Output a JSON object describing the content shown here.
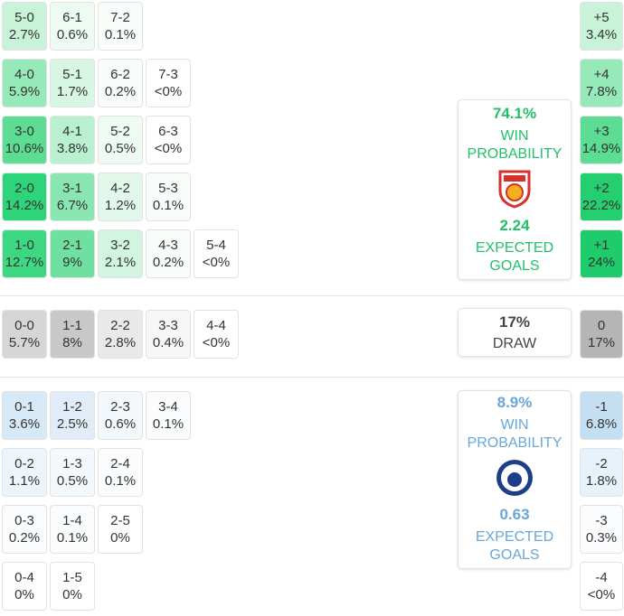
{
  "home_grid": {
    "rows": [
      [
        {
          "score": "5-0",
          "pct": "2.7%",
          "color": "#c8f3d9"
        },
        {
          "score": "6-1",
          "pct": "0.6%",
          "color": "#eefbf3"
        },
        {
          "score": "7-2",
          "pct": "0.1%",
          "color": "#f8fdfa"
        }
      ],
      [
        {
          "score": "4-0",
          "pct": "5.9%",
          "color": "#96e9b8"
        },
        {
          "score": "5-1",
          "pct": "1.7%",
          "color": "#d8f6e4"
        },
        {
          "score": "6-2",
          "pct": "0.2%",
          "color": "#f8fdfa"
        },
        {
          "score": "7-3",
          "pct": "<0%",
          "color": "#ffffff"
        }
      ],
      [
        {
          "score": "3-0",
          "pct": "10.6%",
          "color": "#5ddc93"
        },
        {
          "score": "4-1",
          "pct": "3.8%",
          "color": "#b9f0cf"
        },
        {
          "score": "5-2",
          "pct": "0.5%",
          "color": "#eefbf3"
        },
        {
          "score": "6-3",
          "pct": "<0%",
          "color": "#ffffff"
        }
      ],
      [
        {
          "score": "2-0",
          "pct": "14.2%",
          "color": "#2ed47a"
        },
        {
          "score": "3-1",
          "pct": "6.7%",
          "color": "#8ae6b1"
        },
        {
          "score": "4-2",
          "pct": "1.2%",
          "color": "#e2f8eb"
        },
        {
          "score": "5-3",
          "pct": "0.1%",
          "color": "#f8fdfa"
        }
      ],
      [
        {
          "score": "1-0",
          "pct": "12.7%",
          "color": "#3dd882"
        },
        {
          "score": "2-1",
          "pct": "9%",
          "color": "#6fe0a0"
        },
        {
          "score": "3-2",
          "pct": "2.1%",
          "color": "#d1f5e0"
        },
        {
          "score": "4-3",
          "pct": "0.2%",
          "color": "#f8fdfa"
        },
        {
          "score": "5-4",
          "pct": "<0%",
          "color": "#ffffff"
        }
      ]
    ]
  },
  "draw_row": [
    {
      "score": "0-0",
      "pct": "5.7%",
      "color": "#d6d6d6"
    },
    {
      "score": "1-1",
      "pct": "8%",
      "color": "#c8c8c8"
    },
    {
      "score": "2-2",
      "pct": "2.8%",
      "color": "#e9e9e9"
    },
    {
      "score": "3-3",
      "pct": "0.4%",
      "color": "#f7f7f7"
    },
    {
      "score": "4-4",
      "pct": "<0%",
      "color": "#ffffff"
    }
  ],
  "away_grid": {
    "rows": [
      [
        {
          "score": "0-1",
          "pct": "3.6%",
          "color": "#d7e8f6"
        },
        {
          "score": "1-2",
          "pct": "2.5%",
          "color": "#e0edf8"
        },
        {
          "score": "2-3",
          "pct": "0.6%",
          "color": "#f3f8fc"
        },
        {
          "score": "3-4",
          "pct": "0.1%",
          "color": "#fafcfe"
        }
      ],
      [
        {
          "score": "0-2",
          "pct": "1.1%",
          "color": "#edf5fb"
        },
        {
          "score": "1-3",
          "pct": "0.5%",
          "color": "#f3f8fc"
        },
        {
          "score": "2-4",
          "pct": "0.1%",
          "color": "#fafcfe"
        }
      ],
      [
        {
          "score": "0-3",
          "pct": "0.2%",
          "color": "#fafcfe"
        },
        {
          "score": "1-4",
          "pct": "0.1%",
          "color": "#fafcfe"
        },
        {
          "score": "2-5",
          "pct": "0%",
          "color": "#ffffff"
        }
      ],
      [
        {
          "score": "0-4",
          "pct": "0%",
          "color": "#ffffff"
        },
        {
          "score": "1-5",
          "pct": "0%",
          "color": "#ffffff"
        }
      ]
    ]
  },
  "margins": {
    "home": [
      {
        "score": "+5",
        "pct": "3.4%",
        "color": "#c8f3d9"
      },
      {
        "score": "+4",
        "pct": "7.8%",
        "color": "#96e9b8"
      },
      {
        "score": "+3",
        "pct": "14.9%",
        "color": "#5ddc93"
      },
      {
        "score": "+2",
        "pct": "22.2%",
        "color": "#25cf70"
      },
      {
        "score": "+1",
        "pct": "24%",
        "color": "#1ecc6b"
      }
    ],
    "draw": [
      {
        "score": "0",
        "pct": "17%",
        "color": "#b5b5b5"
      }
    ],
    "away": [
      {
        "score": "-1",
        "pct": "6.8%",
        "color": "#c5dff2"
      },
      {
        "score": "-2",
        "pct": "1.8%",
        "color": "#e6f1f9"
      },
      {
        "score": "-3",
        "pct": "0.3%",
        "color": "#fafcfe"
      },
      {
        "score": "-4",
        "pct": "<0%",
        "color": "#ffffff"
      }
    ]
  },
  "cards": {
    "home": {
      "win_pct": "74.1%",
      "win_label": "WIN PROBABILITY",
      "xg": "2.24",
      "xg_label": "EXPECTED GOALS"
    },
    "draw": {
      "pct": "17%",
      "label": "DRAW"
    },
    "away": {
      "win_pct": "8.9%",
      "win_label": "WIN PROBABILITY",
      "xg": "0.63",
      "xg_label": "EXPECTED GOALS"
    }
  }
}
